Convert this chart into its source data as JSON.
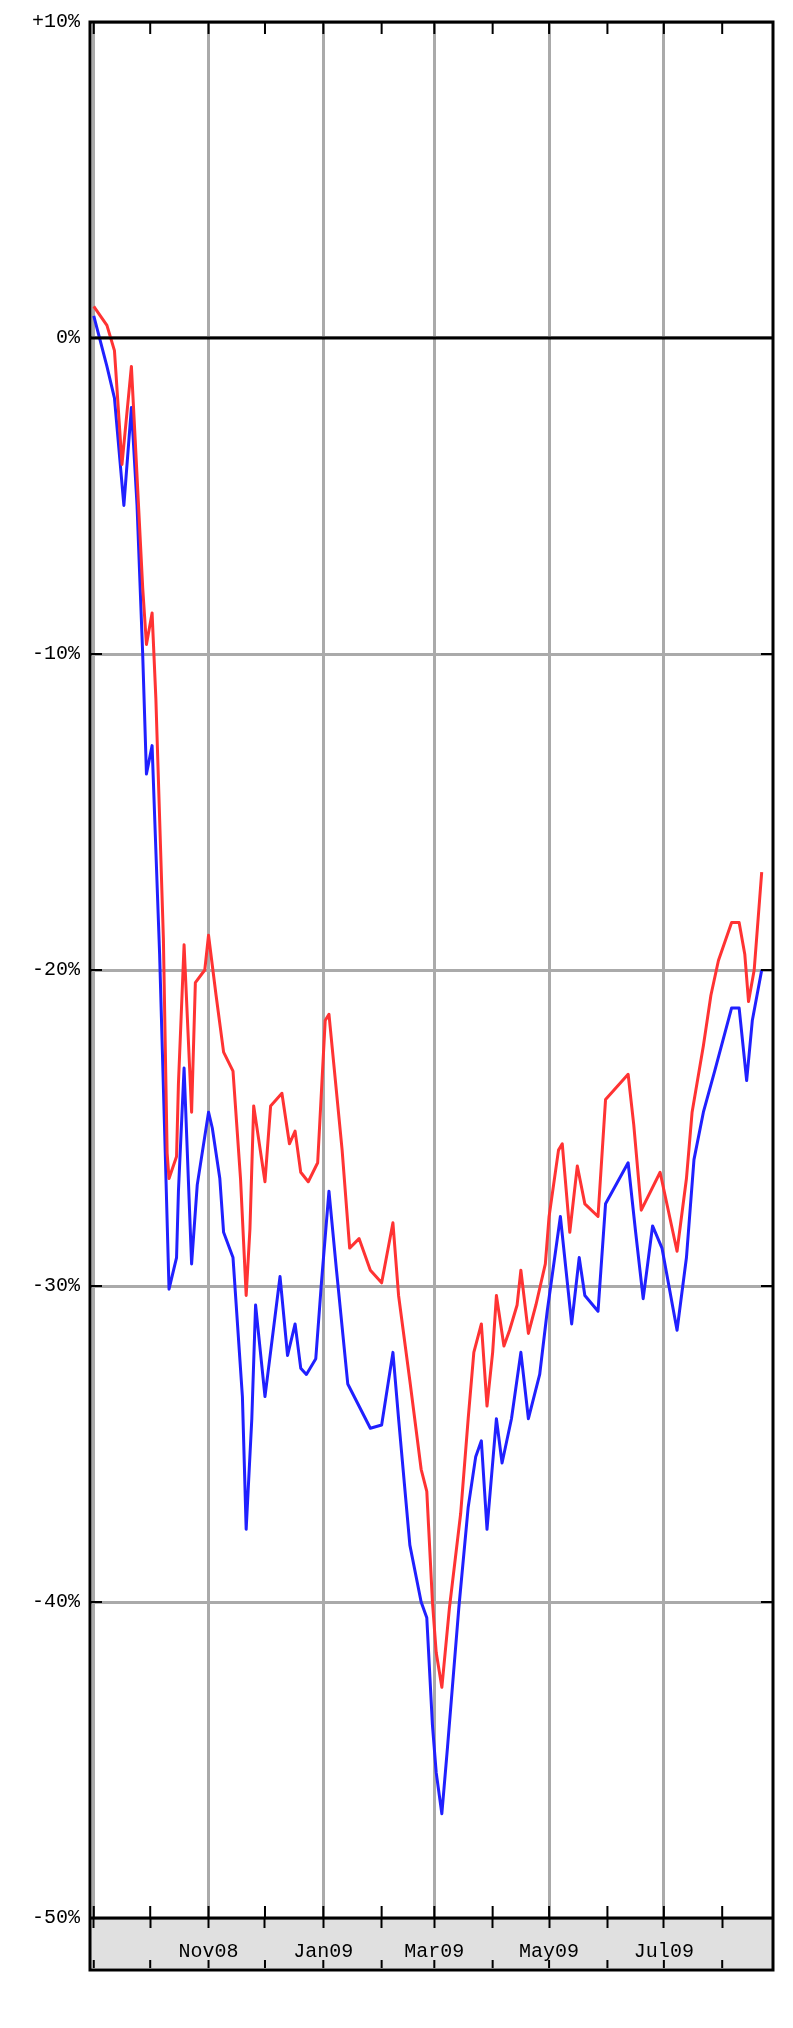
{
  "chart_data": {
    "type": "line",
    "grid": true,
    "legend": false,
    "marker": "none",
    "line_style": "solid",
    "xlim": [
      "2008-08-30",
      "2009-08-28"
    ],
    "xticks": [
      {
        "value": "2008-09-01",
        "label": null
      },
      {
        "value": "2008-10-01",
        "label": null
      },
      {
        "value": "2008-11-01",
        "label": "Nov08"
      },
      {
        "value": "2008-12-01",
        "label": null
      },
      {
        "value": "2009-01-01",
        "label": "Jan09"
      },
      {
        "value": "2009-02-01",
        "label": null
      },
      {
        "value": "2009-03-01",
        "label": "Mar09"
      },
      {
        "value": "2009-04-01",
        "label": null
      },
      {
        "value": "2009-05-01",
        "label": "May09"
      },
      {
        "value": "2009-06-01",
        "label": null
      },
      {
        "value": "2009-07-01",
        "label": "Jul09"
      },
      {
        "value": "2009-08-01",
        "label": null
      }
    ],
    "ylim": [
      -50,
      10
    ],
    "yticks": [
      {
        "value": 10,
        "label": "+10%"
      },
      {
        "value": 0,
        "label": "0%"
      },
      {
        "value": -10,
        "label": "-10%"
      },
      {
        "value": -20,
        "label": "-20%"
      },
      {
        "value": -30,
        "label": "-30%"
      },
      {
        "value": -40,
        "label": "-40%"
      },
      {
        "value": -50,
        "label": "-50%"
      }
    ],
    "ref_lines": [
      {
        "axis": "y",
        "value": 0,
        "color": "#000000"
      }
    ],
    "series": [
      {
        "color": "#ff3333",
        "x": [
          "2008-09-01",
          "2008-09-08",
          "2008-09-12",
          "2008-09-16",
          "2008-09-21",
          "2008-09-23",
          "2008-09-27",
          "2008-09-29",
          "2008-10-02",
          "2008-10-04",
          "2008-10-08",
          "2008-10-10",
          "2008-10-11",
          "2008-10-15",
          "2008-10-16",
          "2008-10-19",
          "2008-10-23",
          "2008-10-25",
          "2008-10-30",
          "2008-11-01",
          "2008-11-05",
          "2008-11-09",
          "2008-11-14",
          "2008-11-18",
          "2008-11-21",
          "2008-11-23",
          "2008-11-25",
          "2008-12-01",
          "2008-12-04",
          "2008-12-10",
          "2008-12-14",
          "2008-12-17",
          "2008-12-20",
          "2008-12-24",
          "2008-12-29",
          "2009-01-02",
          "2009-01-04",
          "2009-01-11",
          "2009-01-15",
          "2009-01-20",
          "2009-01-26",
          "2009-02-01",
          "2009-02-07",
          "2009-02-10",
          "2009-02-16",
          "2009-02-22",
          "2009-02-25",
          "2009-02-28",
          "2009-03-02",
          "2009-03-05",
          "2009-03-09",
          "2009-03-15",
          "2009-03-19",
          "2009-03-22",
          "2009-03-26",
          "2009-03-29",
          "2009-04-01",
          "2009-04-03",
          "2009-04-07",
          "2009-04-10",
          "2009-04-14",
          "2009-04-16",
          "2009-04-20",
          "2009-04-24",
          "2009-04-29",
          "2009-05-01",
          "2009-05-06",
          "2009-05-08",
          "2009-05-12",
          "2009-05-16",
          "2009-05-20",
          "2009-05-27",
          "2009-05-31",
          "2009-06-12",
          "2009-06-15",
          "2009-06-19",
          "2009-06-29",
          "2009-07-08",
          "2009-07-13",
          "2009-07-16",
          "2009-07-22",
          "2009-07-26",
          "2009-07-30",
          "2009-08-06",
          "2009-08-10",
          "2009-08-13",
          "2009-08-15",
          "2009-08-18",
          "2009-08-22"
        ],
        "values": [
          1.0,
          0.4,
          -0.4,
          -4.0,
          -0.9,
          -3.2,
          -7.9,
          -9.7,
          -8.7,
          -11.4,
          -19.0,
          -25.8,
          -26.6,
          -25.9,
          -23.6,
          -19.2,
          -24.5,
          -20.4,
          -20.0,
          -18.9,
          -20.8,
          -22.6,
          -23.2,
          -26.6,
          -30.3,
          -28.2,
          -24.3,
          -26.7,
          -24.3,
          -23.9,
          -25.5,
          -25.1,
          -26.4,
          -26.7,
          -26.1,
          -21.6,
          -21.4,
          -25.7,
          -28.8,
          -28.5,
          -29.5,
          -29.9,
          -28.0,
          -30.3,
          -33.0,
          -35.8,
          -36.5,
          -40.0,
          -41.6,
          -42.7,
          -40.2,
          -37.2,
          -34.2,
          -32.1,
          -31.2,
          -33.8,
          -32.1,
          -30.3,
          -31.9,
          -31.4,
          -30.6,
          -29.5,
          -31.5,
          -30.6,
          -29.3,
          -27.8,
          -25.7,
          -25.5,
          -28.3,
          -26.2,
          -27.4,
          -27.8,
          -24.1,
          -23.3,
          -24.9,
          -27.6,
          -26.4,
          -28.9,
          -26.6,
          -24.5,
          -22.4,
          -20.8,
          -19.7,
          -18.5,
          -18.5,
          -19.5,
          -21.0,
          -20.0,
          -16.9
        ]
      },
      {
        "color": "#2020ff",
        "x": [
          "2008-09-01",
          "2008-09-08",
          "2008-09-12",
          "2008-09-17",
          "2008-09-21",
          "2008-09-24",
          "2008-09-27",
          "2008-09-29",
          "2008-10-02",
          "2008-10-06",
          "2008-10-09",
          "2008-10-11",
          "2008-10-15",
          "2008-10-16",
          "2008-10-19",
          "2008-10-23",
          "2008-10-26",
          "2008-11-01",
          "2008-11-03",
          "2008-11-07",
          "2008-11-09",
          "2008-11-14",
          "2008-11-19",
          "2008-11-21",
          "2008-11-24",
          "2008-11-26",
          "2008-12-01",
          "2008-12-09",
          "2008-12-13",
          "2008-12-17",
          "2008-12-20",
          "2008-12-23",
          "2008-12-28",
          "2008-12-31",
          "2009-01-04",
          "2009-01-08",
          "2009-01-14",
          "2009-01-26",
          "2009-02-01",
          "2009-02-07",
          "2009-02-10",
          "2009-02-16",
          "2009-02-22",
          "2009-02-25",
          "2009-02-28",
          "2009-03-02",
          "2009-03-05",
          "2009-03-08",
          "2009-03-14",
          "2009-03-19",
          "2009-03-23",
          "2009-03-26",
          "2009-03-29",
          "2009-04-03",
          "2009-04-06",
          "2009-04-11",
          "2009-04-16",
          "2009-04-20",
          "2009-04-26",
          "2009-04-30",
          "2009-05-07",
          "2009-05-13",
          "2009-05-17",
          "2009-05-20",
          "2009-05-27",
          "2009-05-31",
          "2009-06-12",
          "2009-06-16",
          "2009-06-20",
          "2009-06-25",
          "2009-06-30",
          "2009-07-08",
          "2009-07-13",
          "2009-07-17",
          "2009-07-22",
          "2009-07-28",
          "2009-08-06",
          "2009-08-10",
          "2009-08-14",
          "2009-08-17",
          "2009-08-22"
        ],
        "values": [
          0.7,
          -0.9,
          -1.9,
          -5.3,
          -2.2,
          -5.3,
          -10.0,
          -13.8,
          -12.9,
          -19.5,
          -25.8,
          -30.1,
          -29.1,
          -27.0,
          -23.1,
          -29.3,
          -26.8,
          -24.5,
          -25.0,
          -26.6,
          -28.3,
          -29.1,
          -33.5,
          -37.7,
          -34.2,
          -30.6,
          -33.5,
          -29.7,
          -32.2,
          -31.2,
          -32.6,
          -32.8,
          -32.3,
          -29.9,
          -27.0,
          -29.5,
          -33.1,
          -34.5,
          -34.4,
          -32.1,
          -34.2,
          -38.2,
          -40.0,
          -40.5,
          -43.9,
          -45.4,
          -46.7,
          -44.6,
          -40.2,
          -37.0,
          -35.4,
          -34.9,
          -37.7,
          -34.2,
          -35.6,
          -34.2,
          -32.1,
          -34.2,
          -32.8,
          -30.8,
          -27.8,
          -31.2,
          -29.1,
          -30.3,
          -30.8,
          -27.4,
          -26.1,
          -28.3,
          -30.4,
          -28.1,
          -28.8,
          -31.4,
          -29.1,
          -26.0,
          -24.5,
          -23.2,
          -21.2,
          -21.2,
          -23.5,
          -21.6,
          -20.0
        ]
      }
    ]
  }
}
